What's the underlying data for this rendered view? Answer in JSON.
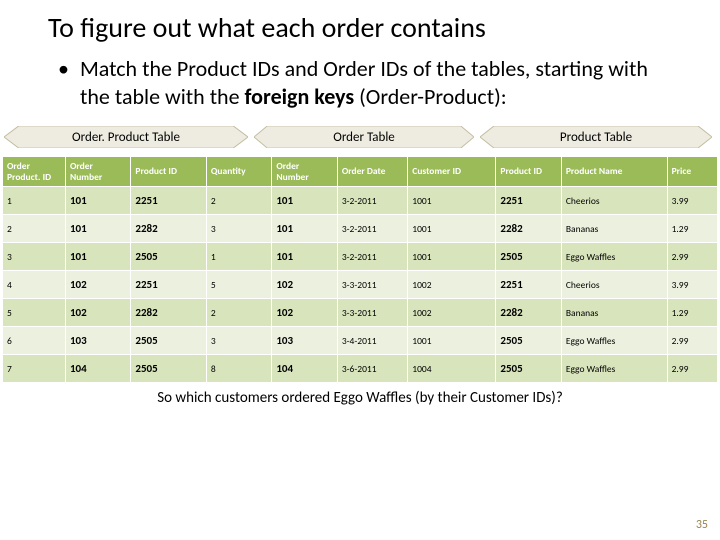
{
  "colors": {
    "header_bg": "#9bbb59",
    "row_odd": "#d8e4bc",
    "row_even": "#ebf1de",
    "arrow_fill": "#eeece1",
    "arrow_stroke": "#c3bca1",
    "slidenum": "#9a8553"
  },
  "title": "To figure out what each order contains",
  "bullet": {
    "pre": "Match the Product IDs and Order IDs of the tables, starting with the table with the ",
    "bold": "foreign keys",
    "post": " (Order-Product):"
  },
  "section_labels": {
    "orderproduct": "Order. Product Table",
    "order": "Order Table",
    "product": "Product Table"
  },
  "headers": {
    "op_id": "Order Product. ID",
    "op_ordernum": "Order Number",
    "op_productid": "Product ID",
    "op_qty": "Quantity",
    "o_ordernum": "Order Number",
    "o_date": "Order Date",
    "o_customer": "Customer ID",
    "p_id": "Product ID",
    "p_name": "Product Name",
    "p_price": "Price"
  },
  "rows": [
    {
      "id": "1",
      "onum": "101",
      "pid": "2251",
      "qty": "2",
      "onum2": "101",
      "date": "3-2-2011",
      "cust": "1001",
      "pid2": "2251",
      "pname": "Cheerios",
      "price": "3.99"
    },
    {
      "id": "2",
      "onum": "101",
      "pid": "2282",
      "qty": "3",
      "onum2": "101",
      "date": "3-2-2011",
      "cust": "1001",
      "pid2": "2282",
      "pname": "Bananas",
      "price": "1.29"
    },
    {
      "id": "3",
      "onum": "101",
      "pid": "2505",
      "qty": "1",
      "onum2": "101",
      "date": "3-2-2011",
      "cust": "1001",
      "pid2": "2505",
      "pname": "Eggo Waffles",
      "price": "2.99"
    },
    {
      "id": "4",
      "onum": "102",
      "pid": "2251",
      "qty": "5",
      "onum2": "102",
      "date": "3-3-2011",
      "cust": "1002",
      "pid2": "2251",
      "pname": "Cheerios",
      "price": "3.99"
    },
    {
      "id": "5",
      "onum": "102",
      "pid": "2282",
      "qty": "2",
      "onum2": "102",
      "date": "3-3-2011",
      "cust": "1002",
      "pid2": "2282",
      "pname": "Bananas",
      "price": "1.29"
    },
    {
      "id": "6",
      "onum": "103",
      "pid": "2505",
      "qty": "3",
      "onum2": "103",
      "date": "3-4-2011",
      "cust": "1001",
      "pid2": "2505",
      "pname": "Eggo Waffles",
      "price": "2.99"
    },
    {
      "id": "7",
      "onum": "104",
      "pid": "2505",
      "qty": "8",
      "onum2": "104",
      "date": "3-6-2011",
      "cust": "1004",
      "pid2": "2505",
      "pname": "Eggo Waffles",
      "price": "2.99"
    }
  ],
  "question": "So which customers ordered Eggo Waffles (by their Customer IDs)?",
  "slide_number": "35"
}
